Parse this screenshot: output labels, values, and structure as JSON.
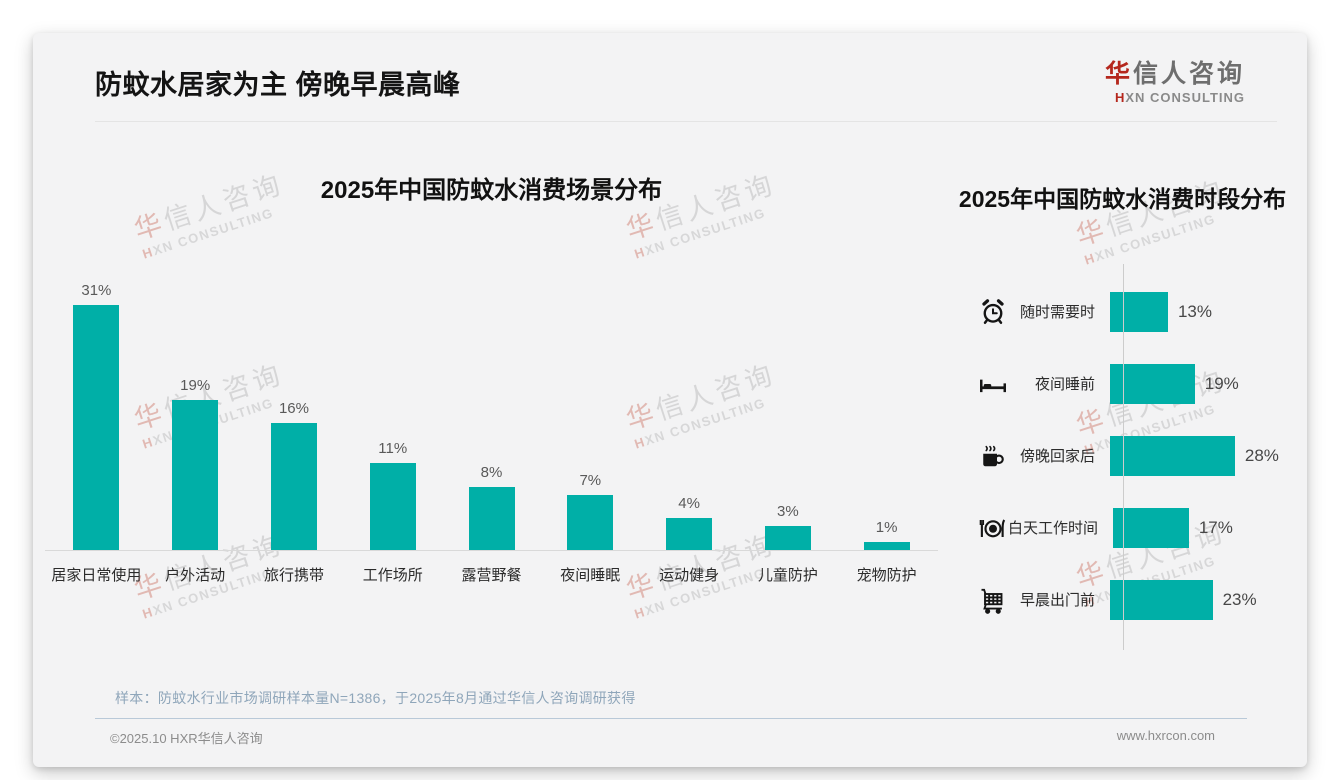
{
  "page": {
    "title": "防蚊水居家为主 傍晚早晨高峰",
    "logo": {
      "zh_accent": "华",
      "zh_rest": "信人咨询",
      "en_accent": "H",
      "en_rest": "XN CONSULTING"
    },
    "watermark": {
      "zh_accent": "华",
      "zh_rest": "信人咨询",
      "en_accent": "H",
      "en_rest": "XN CONSULTING"
    },
    "footer": {
      "sample_note": "样本：防蚊水行业市场调研样本量N=1386，于2025年8月通过华信人咨询调研获得",
      "copyright": "©2025.10 HXR华信人咨询",
      "website": "www.hxrcon.com"
    }
  },
  "colors": {
    "bar_teal": "#00afa7",
    "brand_red": "#b5271d",
    "card_bg": "#f3f3f4",
    "note_blue": "#8fa6ba"
  },
  "chart_data": [
    {
      "type": "bar",
      "orientation": "vertical",
      "title": "2025年中国防蚊水消费场景分布",
      "categories": [
        "居家日常使用",
        "户外活动",
        "旅行携带",
        "工作场所",
        "露营野餐",
        "夜间睡眠",
        "运动健身",
        "儿童防护",
        "宠物防护"
      ],
      "values": [
        31,
        19,
        16,
        11,
        8,
        7,
        4,
        3,
        1
      ],
      "labels": [
        "31%",
        "19%",
        "16%",
        "11%",
        "8%",
        "7%",
        "4%",
        "3%",
        "1%"
      ],
      "unit": "%",
      "ylim": [
        0,
        35
      ],
      "grid": false,
      "legend": false,
      "bar_color": "#00afa7"
    },
    {
      "type": "bar",
      "orientation": "horizontal",
      "title": "2025年中国防蚊水消费时段分布",
      "categories": [
        "随时需要时",
        "夜间睡前",
        "傍晚回家后",
        "白天工作时间",
        "早晨出门前"
      ],
      "values": [
        13,
        19,
        28,
        17,
        23
      ],
      "labels": [
        "13%",
        "19%",
        "28%",
        "17%",
        "23%"
      ],
      "icons": [
        "alarm-clock-icon",
        "bed-icon",
        "coffee-icon",
        "dining-icon",
        "shopping-cart-icon"
      ],
      "unit": "%",
      "xlim": [
        0,
        30
      ],
      "grid": false,
      "legend": false,
      "bar_color": "#00afa7"
    }
  ]
}
